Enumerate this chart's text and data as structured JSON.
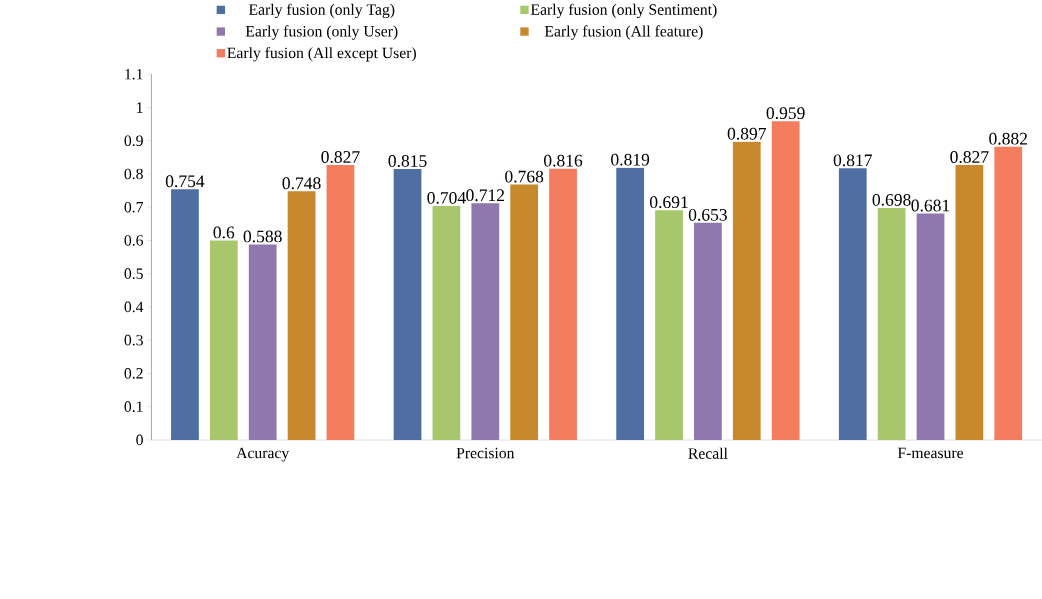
{
  "chart_data": {
    "type": "bar",
    "categories": [
      "Acuracy",
      "Precision",
      "Recall",
      "F-measure"
    ],
    "series": [
      {
        "name": "Early fusion (only Tag)",
        "color": "#4f6fa3",
        "values": [
          0.754,
          0.815,
          0.819,
          0.817
        ]
      },
      {
        "name": "Early fusion (only Sentiment)",
        "color": "#a8c66c",
        "values": [
          0.6,
          0.704,
          0.691,
          0.698
        ]
      },
      {
        "name": "Early fusion (only User)",
        "color": "#8e78ad",
        "values": [
          0.588,
          0.712,
          0.653,
          0.681
        ]
      },
      {
        "name": "Early fusion (All feature)",
        "color": "#c8892c",
        "values": [
          0.748,
          0.768,
          0.897,
          0.827
        ]
      },
      {
        "name": "Early fusion (All except User)",
        "color": "#f47c5f",
        "values": [
          0.827,
          0.816,
          0.959,
          0.882
        ]
      }
    ],
    "ylim": [
      0,
      1.1
    ],
    "yticks": [
      0,
      0.1,
      0.2,
      0.3,
      0.4,
      0.5,
      0.6,
      0.7,
      0.8,
      0.9,
      1,
      1.1
    ],
    "data_labels": true,
    "legend": "top",
    "grid": false
  }
}
